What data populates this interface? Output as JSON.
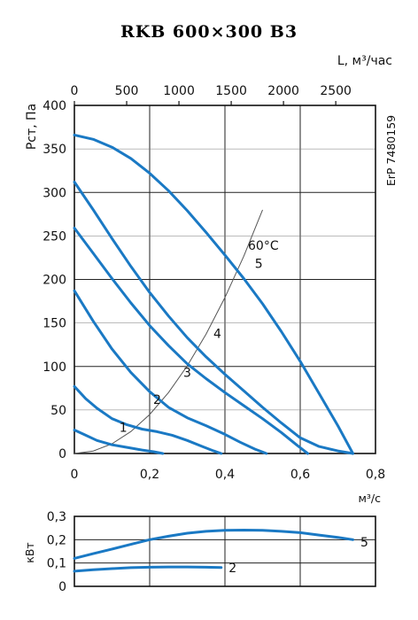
{
  "chart_data": [
    {
      "type": "line",
      "title": "RKB 600×300 B3",
      "ylabel": "Рст, Па",
      "xlabel": "м³/с",
      "top_axis_label": "L, м³/час",
      "side_label": "ErP 7480159",
      "temperature_label": "60°C",
      "xlim": [
        0,
        0.8
      ],
      "ylim": [
        0,
        400
      ],
      "x_ticks": [
        "0",
        "0,2",
        "0,4",
        "0,6",
        "0,8"
      ],
      "y_ticks": [
        "0",
        "50",
        "100",
        "150",
        "200",
        "250",
        "300",
        "350",
        "400"
      ],
      "top_ticks": [
        "0",
        "500",
        "1000",
        "1500",
        "2000",
        "2500"
      ],
      "top_tick_values": [
        0,
        500,
        1000,
        1500,
        2000,
        2500
      ],
      "grid": true,
      "colors": {
        "fan_curves": "#1a79c4",
        "system_curve": "#555555"
      },
      "series": [
        {
          "name": "1",
          "x": [
            0,
            0.03,
            0.06,
            0.1,
            0.14,
            0.18,
            0.21,
            0.235
          ],
          "y": [
            27,
            21,
            15,
            10,
            7,
            4,
            2,
            0
          ]
        },
        {
          "name": "2",
          "x": [
            0,
            0.03,
            0.06,
            0.1,
            0.14,
            0.18,
            0.22,
            0.26,
            0.3,
            0.34,
            0.37,
            0.39
          ],
          "y": [
            77,
            63,
            52,
            40,
            33,
            28,
            25,
            21,
            15,
            8,
            3,
            0
          ]
        },
        {
          "name": "3",
          "x": [
            0,
            0.05,
            0.1,
            0.15,
            0.2,
            0.25,
            0.3,
            0.35,
            0.4,
            0.44,
            0.48,
            0.51
          ],
          "y": [
            187,
            152,
            120,
            93,
            71,
            53,
            41,
            32,
            22,
            13,
            5,
            0
          ]
        },
        {
          "name": "4",
          "x": [
            0,
            0.05,
            0.1,
            0.15,
            0.2,
            0.25,
            0.3,
            0.35,
            0.4,
            0.45,
            0.5,
            0.55,
            0.59,
            0.62
          ],
          "y": [
            259,
            230,
            201,
            173,
            147,
            124,
            103,
            86,
            70,
            55,
            40,
            24,
            10,
            0
          ]
        },
        {
          "name": "5",
          "x": [
            0,
            0.05,
            0.1,
            0.15,
            0.2,
            0.25,
            0.3,
            0.35,
            0.4,
            0.45,
            0.5,
            0.55,
            0.6,
            0.65,
            0.7,
            0.74
          ],
          "y": [
            312,
            280,
            247,
            215,
            185,
            158,
            133,
            111,
            91,
            72,
            53,
            35,
            18,
            8,
            3,
            0
          ]
        },
        {
          "name": "5",
          "x": [
            0,
            0.05,
            0.1,
            0.15,
            0.2,
            0.25,
            0.3,
            0.35,
            0.4,
            0.45,
            0.5,
            0.55,
            0.6,
            0.65,
            0.7,
            0.74
          ],
          "y": [
            366,
            361,
            352,
            339,
            322,
            302,
            279,
            254,
            228,
            201,
            172,
            140,
            106,
            69,
            32,
            0
          ]
        }
      ],
      "curve_labels": [
        {
          "text": "1",
          "x": 0.13,
          "y": 25
        },
        {
          "text": "2",
          "x": 0.22,
          "y": 57
        },
        {
          "text": "3",
          "x": 0.3,
          "y": 88
        },
        {
          "text": "4",
          "x": 0.38,
          "y": 133
        },
        {
          "text": "5",
          "x": 0.49,
          "y": 213
        }
      ],
      "system_curve": {
        "x": [
          0,
          0.05,
          0.1,
          0.15,
          0.2,
          0.25,
          0.3,
          0.35,
          0.4,
          0.45,
          0.5
        ],
        "y": [
          0,
          2.8,
          11.2,
          25.2,
          44.8,
          70,
          100.8,
          137.2,
          179.2,
          226.8,
          280
        ]
      }
    },
    {
      "type": "line",
      "ylabel": "кВт",
      "xlim": [
        0,
        0.8
      ],
      "ylim": [
        0,
        0.3
      ],
      "y_ticks": [
        "0",
        "0,1",
        "0,2",
        "0,3"
      ],
      "grid": true,
      "series": [
        {
          "name": "5",
          "x": [
            0,
            0.05,
            0.1,
            0.15,
            0.2,
            0.25,
            0.3,
            0.35,
            0.4,
            0.45,
            0.5,
            0.55,
            0.6,
            0.65,
            0.7,
            0.74
          ],
          "y": [
            0.12,
            0.14,
            0.16,
            0.18,
            0.2,
            0.215,
            0.228,
            0.236,
            0.24,
            0.241,
            0.24,
            0.236,
            0.23,
            0.22,
            0.21,
            0.2
          ]
        },
        {
          "name": "2",
          "x": [
            0,
            0.05,
            0.1,
            0.15,
            0.2,
            0.25,
            0.3,
            0.35,
            0.39
          ],
          "y": [
            0.065,
            0.071,
            0.076,
            0.08,
            0.082,
            0.083,
            0.083,
            0.082,
            0.081
          ]
        }
      ],
      "curve_labels": [
        {
          "text": "5",
          "x": 0.76,
          "y": 0.17
        },
        {
          "text": "2",
          "x": 0.41,
          "y": 0.06
        }
      ]
    }
  ]
}
